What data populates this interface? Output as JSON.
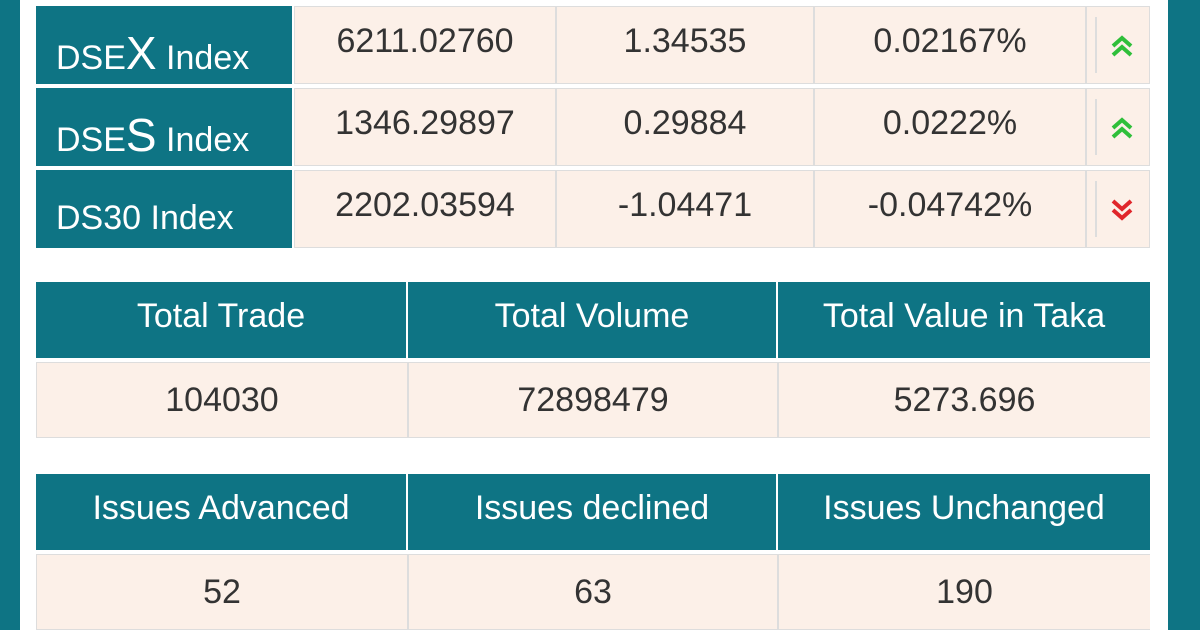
{
  "indices": [
    {
      "prefix": "DSE",
      "letter": "X",
      "suffix": " Index",
      "value": "6211.02760",
      "change": "1.34535",
      "percent": "0.02167%",
      "direction": "up"
    },
    {
      "prefix": "DSE",
      "letter": "S",
      "suffix": " Index",
      "value": "1346.29897",
      "change": "0.29884",
      "percent": "0.0222%",
      "direction": "up"
    },
    {
      "prefix": "DS30",
      "letter": "",
      "suffix": " Index",
      "value": "2202.03594",
      "change": "-1.04471",
      "percent": "-0.04742%",
      "direction": "down"
    }
  ],
  "trade_summary": {
    "headers": [
      "Total Trade",
      "Total Volume",
      "Total Value in Taka"
    ],
    "values": [
      "104030",
      "72898479",
      "5273.696"
    ]
  },
  "issues_summary": {
    "headers": [
      "Issues Advanced",
      "Issues declined",
      "Issues Unchanged"
    ],
    "values": [
      "52",
      "63",
      "190"
    ]
  },
  "colors": {
    "header_bg": "#0e7484",
    "cell_bg": "#fcf0e8",
    "up": "#2fbf3a",
    "down": "#e0262b"
  },
  "icons": {
    "up": "double-chevron-up-icon",
    "down": "double-chevron-down-icon"
  }
}
